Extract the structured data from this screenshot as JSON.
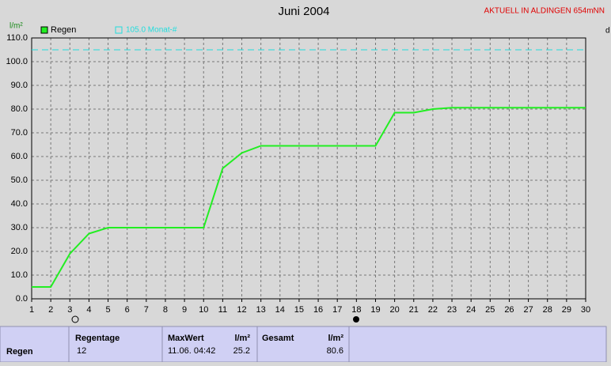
{
  "chart_data": {
    "type": "line",
    "title": "Juni 2004",
    "annotation": "AKTUELL IN ALDINGEN 654mNN",
    "y_label": "l/m²",
    "x_label": "d",
    "x": [
      1,
      2,
      3,
      4,
      5,
      6,
      7,
      8,
      9,
      10,
      11,
      12,
      13,
      14,
      15,
      16,
      17,
      18,
      19,
      20,
      21,
      22,
      23,
      24,
      25,
      26,
      27,
      28,
      29,
      30
    ],
    "series": [
      {
        "name": "Regen",
        "color": "#22ee22",
        "values": [
          5,
          5,
          19,
          27.5,
          30,
          30,
          30,
          30,
          30,
          30,
          55,
          61.5,
          64.5,
          64.5,
          64.5,
          64.5,
          64.5,
          64.5,
          64.5,
          78.5,
          78.5,
          80,
          80.6,
          80.6,
          80.6,
          80.6,
          80.6,
          80.6,
          80.6,
          80.6
        ]
      }
    ],
    "reference": {
      "label": "105.0 Monat-#",
      "value": 105,
      "color": "#22dddd"
    },
    "xlim": [
      1,
      30
    ],
    "xticks": [
      1,
      2,
      3,
      4,
      5,
      6,
      7,
      8,
      9,
      10,
      11,
      12,
      13,
      14,
      15,
      16,
      17,
      18,
      19,
      20,
      21,
      22,
      23,
      24,
      25,
      26,
      27,
      28,
      29,
      30
    ],
    "ylim": [
      0,
      110
    ],
    "yticks": [
      {
        "value": 0,
        "label": "0.0"
      },
      {
        "value": 10,
        "label": "10.0"
      },
      {
        "value": 20,
        "label": "20.0"
      },
      {
        "value": 30,
        "label": "30.0"
      },
      {
        "value": 40,
        "label": "40.0"
      },
      {
        "value": 50,
        "label": "50.0"
      },
      {
        "value": 60,
        "label": "60.0"
      },
      {
        "value": 70,
        "label": "70.0"
      },
      {
        "value": 80,
        "label": "80.0"
      },
      {
        "value": 90,
        "label": "90.0"
      },
      {
        "value": 100,
        "label": "100.0"
      },
      {
        "value": 110,
        "label": "110.0"
      }
    ],
    "grid": true
  },
  "table": {
    "row_label": "Regen",
    "regentage": {
      "header": "Regentage",
      "value": "12"
    },
    "maxwert": {
      "header": "MaxWert",
      "unit": "l/m²",
      "date": "11.06.  04:42",
      "value": "25.2"
    },
    "gesamt": {
      "header": "Gesamt",
      "unit": "l/m²",
      "value": "80.6"
    }
  }
}
